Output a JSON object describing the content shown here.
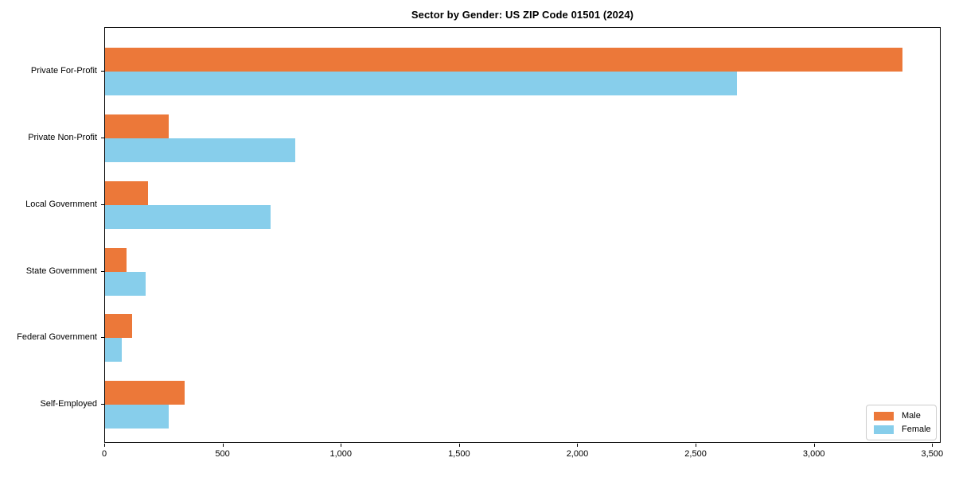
{
  "title": "Sector by Gender: US ZIP Code 01501 (2024)",
  "colors": {
    "male": "#EC7839",
    "female": "#87CEEB",
    "spine": "#000000",
    "legend_border": "#cccccc",
    "background": "#ffffff"
  },
  "legend": {
    "position": "lower right",
    "items": [
      {
        "label": "Male",
        "color": "#EC7839"
      },
      {
        "label": "Female",
        "color": "#87CEEB"
      }
    ]
  },
  "chart_data": {
    "type": "bar",
    "orientation": "horizontal",
    "title": "Sector by Gender: US ZIP Code 01501 (2024)",
    "categories": [
      "Private For-Profit",
      "Private Non-Profit",
      "Local Government",
      "State Government",
      "Federal Government",
      "Self-Employed"
    ],
    "series": [
      {
        "name": "Male",
        "color": "#EC7839",
        "values": [
          3370,
          270,
          180,
          90,
          115,
          335
        ]
      },
      {
        "name": "Female",
        "color": "#87CEEB",
        "values": [
          2670,
          805,
          700,
          170,
          70,
          270
        ]
      }
    ],
    "xlabel": "",
    "ylabel": "",
    "xlim": [
      0,
      3536
    ],
    "xticks": [
      0,
      500,
      1000,
      1500,
      2000,
      2500,
      3000,
      3500
    ],
    "xtick_labels": [
      "0",
      "500",
      "1,000",
      "1,500",
      "2,000",
      "2,500",
      "3,000",
      "3,500"
    ],
    "grid": false,
    "legend_position": "lower right"
  }
}
